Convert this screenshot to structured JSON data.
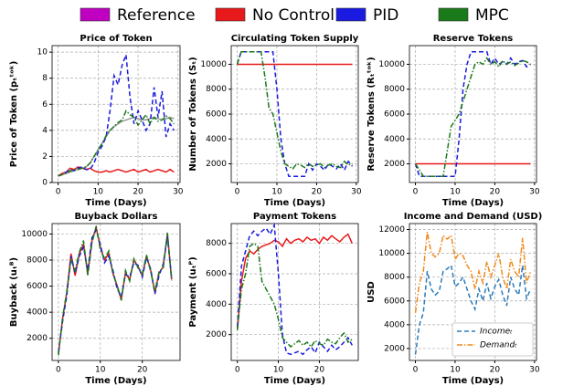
{
  "legend": [
    {
      "name": "Reference",
      "color": "#c000c0"
    },
    {
      "name": "No Control",
      "color": "#e8191a"
    },
    {
      "name": "PID",
      "color": "#1a1ae0"
    },
    {
      "name": "MPC",
      "color": "#1a7a1a"
    }
  ],
  "chart_data": [
    {
      "type": "line",
      "title": "Price of Token",
      "xlabel": "Time (Days)",
      "ylabel": "Price of Token (pₜᵗᵒᵏ)",
      "grid": true,
      "x": [
        0,
        1,
        2,
        3,
        4,
        5,
        6,
        7,
        8,
        9,
        10,
        11,
        12,
        13,
        14,
        15,
        16,
        17,
        18,
        19,
        20,
        21,
        22,
        23,
        24,
        25,
        26,
        27,
        28,
        29
      ],
      "xlim": [
        -1.5,
        30.5
      ],
      "xticks": [
        0,
        10,
        20,
        30
      ],
      "ylim": [
        0,
        10.5
      ],
      "yticks": [
        0,
        2,
        4,
        6,
        8,
        10
      ],
      "series": [
        {
          "name": "Reference",
          "color": "#808080",
          "style": "solid",
          "values": [
            0.5,
            0.6,
            0.7,
            0.8,
            0.9,
            1.0,
            1.1,
            1.2,
            1.5,
            2.0,
            2.5,
            3.0,
            3.5,
            4.0,
            4.3,
            4.5,
            4.7,
            4.8,
            4.9,
            5.0,
            4.9,
            4.8,
            4.8,
            4.9,
            5.0,
            4.9,
            4.8,
            4.9,
            5.0,
            4.9
          ]
        },
        {
          "name": "No Control",
          "color": "#e8191a",
          "style": "solid",
          "values": [
            0.5,
            0.7,
            0.8,
            1.1,
            1.0,
            1.2,
            1.1,
            1.0,
            1.1,
            0.9,
            0.8,
            0.8,
            0.9,
            0.8,
            0.9,
            1.0,
            0.9,
            0.8,
            0.9,
            1.0,
            0.8,
            0.9,
            1.0,
            0.8,
            0.9,
            1.0,
            0.9,
            0.8,
            1.0,
            0.8
          ]
        },
        {
          "name": "PID",
          "color": "#1a1ae0",
          "style": "dashed",
          "values": [
            0.5,
            0.6,
            0.8,
            1.0,
            0.9,
            1.1,
            1.2,
            1.0,
            1.0,
            1.5,
            2.3,
            2.8,
            3.5,
            5.5,
            8.2,
            7.5,
            9.0,
            9.8,
            6.5,
            4.5,
            5.5,
            4.8,
            4.0,
            4.5,
            7.3,
            5.0,
            7.0,
            3.5,
            4.5,
            4.0
          ]
        },
        {
          "name": "MPC",
          "color": "#1a7a1a",
          "style": "dashdot",
          "values": [
            0.5,
            0.6,
            0.7,
            0.9,
            1.0,
            1.0,
            1.1,
            1.2,
            1.5,
            2.0,
            2.5,
            3.0,
            3.6,
            4.0,
            4.3,
            4.6,
            4.8,
            5.5,
            5.2,
            5.0,
            4.4,
            4.8,
            5.2,
            4.5,
            5.0,
            4.7,
            4.8,
            5.1,
            4.9,
            4.5
          ]
        }
      ]
    },
    {
      "type": "line",
      "title": "Circulating Token Supply",
      "xlabel": "Time (Days)",
      "ylabel": "Number of Tokens (Sₜ)",
      "grid": true,
      "x": [
        0,
        1,
        2,
        3,
        4,
        5,
        6,
        7,
        8,
        9,
        10,
        11,
        12,
        13,
        14,
        15,
        16,
        17,
        18,
        19,
        20,
        21,
        22,
        23,
        24,
        25,
        26,
        27,
        28,
        29
      ],
      "xlim": [
        -1.5,
        30.5
      ],
      "xticks": [
        0,
        10,
        20,
        30
      ],
      "ylim": [
        500,
        11500
      ],
      "yticks": [
        2000,
        4000,
        6000,
        8000,
        10000
      ],
      "series": [
        {
          "name": "No Control",
          "color": "#e8191a",
          "style": "solid",
          "values": [
            10000,
            10000,
            10000,
            10000,
            10000,
            10000,
            10000,
            10000,
            10000,
            10000,
            10000,
            10000,
            10000,
            10000,
            10000,
            10000,
            10000,
            10000,
            10000,
            10000,
            10000,
            10000,
            10000,
            10000,
            10000,
            10000,
            10000,
            10000,
            10000,
            10000
          ]
        },
        {
          "name": "PID",
          "color": "#1a1ae0",
          "style": "dashed",
          "values": [
            10000,
            11000,
            11000,
            11000,
            11000,
            11000,
            11000,
            11000,
            11000,
            11000,
            8000,
            4000,
            2000,
            1000,
            1000,
            1000,
            1000,
            1000,
            2000,
            1500,
            2000,
            1800,
            1500,
            2000,
            1800,
            1600,
            2000,
            1500,
            2200,
            1800
          ]
        },
        {
          "name": "MPC",
          "color": "#1a7a1a",
          "style": "dashdot",
          "values": [
            10000,
            11000,
            11000,
            11000,
            11000,
            11000,
            11000,
            9000,
            6500,
            6000,
            4500,
            3000,
            2000,
            1800,
            1600,
            2000,
            1900,
            1700,
            2000,
            1800,
            1900,
            2000,
            1700,
            1900,
            2000,
            1800,
            1700,
            2200,
            1900,
            2000
          ]
        }
      ]
    },
    {
      "type": "line",
      "title": "Reserve Tokens",
      "xlabel": "Time (Days)",
      "ylabel": "Reserve Tokens (Rₜᵗᵒᵏ)",
      "grid": true,
      "x": [
        0,
        1,
        2,
        3,
        4,
        5,
        6,
        7,
        8,
        9,
        10,
        11,
        12,
        13,
        14,
        15,
        16,
        17,
        18,
        19,
        20,
        21,
        22,
        23,
        24,
        25,
        26,
        27,
        28,
        29
      ],
      "xlim": [
        -1.5,
        30.5
      ],
      "xticks": [
        0,
        10,
        20,
        30
      ],
      "ylim": [
        500,
        11500
      ],
      "yticks": [
        2000,
        4000,
        6000,
        8000,
        10000
      ],
      "series": [
        {
          "name": "No Control",
          "color": "#e8191a",
          "style": "solid",
          "values": [
            2000,
            2000,
            2000,
            2000,
            2000,
            2000,
            2000,
            2000,
            2000,
            2000,
            2000,
            2000,
            2000,
            2000,
            2000,
            2000,
            2000,
            2000,
            2000,
            2000,
            2000,
            2000,
            2000,
            2000,
            2000,
            2000,
            2000,
            2000,
            2000,
            2000
          ]
        },
        {
          "name": "PID",
          "color": "#1a1ae0",
          "style": "dashed",
          "values": [
            2000,
            1000,
            1000,
            1000,
            1000,
            1000,
            1000,
            1000,
            1000,
            1000,
            1000,
            4000,
            8000,
            10000,
            11000,
            11000,
            11000,
            11000,
            11000,
            10000,
            10500,
            10000,
            10200,
            10000,
            10500,
            10000,
            10200,
            10300,
            9800,
            10000
          ]
        },
        {
          "name": "MPC",
          "color": "#1a7a1a",
          "style": "dashdot",
          "values": [
            2000,
            1500,
            1000,
            1000,
            1000,
            1000,
            1000,
            1000,
            3000,
            5000,
            5500,
            6000,
            7000,
            8000,
            9000,
            10000,
            10200,
            10000,
            10500,
            10000,
            10200,
            9800,
            10300,
            10000,
            10200,
            9900,
            10100,
            10300,
            10200,
            10000
          ]
        }
      ]
    },
    {
      "type": "line",
      "title": "Buyback Dollars",
      "xlabel": "Time (Days)",
      "ylabel": "Buyback (uₜᴮ)",
      "grid": true,
      "x": [
        0,
        1,
        2,
        3,
        4,
        5,
        6,
        7,
        8,
        9,
        10,
        11,
        12,
        13,
        14,
        15,
        16,
        17,
        18,
        19,
        20,
        21,
        22,
        23,
        24,
        25,
        26,
        27
      ],
      "xlim": [
        -1.5,
        29
      ],
      "xticks": [
        0,
        10,
        20
      ],
      "ylim": [
        300,
        10800
      ],
      "yticks": [
        2000,
        4000,
        6000,
        8000,
        10000
      ],
      "series": [
        {
          "name": "No Control",
          "color": "#e8191a",
          "style": "solid",
          "values": [
            800,
            3500,
            5500,
            8500,
            6800,
            8500,
            9200,
            7000,
            9500,
            10500,
            9000,
            8000,
            8500,
            7000,
            6000,
            5000,
            7000,
            6500,
            8000,
            7500,
            6800,
            8300,
            7200,
            5500,
            7000,
            7500,
            10000,
            6500
          ]
        },
        {
          "name": "PID",
          "color": "#1a1ae0",
          "style": "dashed",
          "values": [
            900,
            3300,
            5300,
            8300,
            7000,
            8300,
            9000,
            7200,
            9700,
            10300,
            9200,
            7800,
            8300,
            7200,
            5800,
            5200,
            6900,
            6700,
            7800,
            7600,
            6700,
            8200,
            7300,
            5400,
            6800,
            7700,
            9800,
            6600
          ]
        },
        {
          "name": "MPC",
          "color": "#1a7a1a",
          "style": "dashdot",
          "values": [
            700,
            3600,
            5600,
            8000,
            7200,
            8600,
            9500,
            6800,
            9300,
            10600,
            8800,
            8100,
            8700,
            6900,
            6100,
            4900,
            7200,
            6400,
            8100,
            7400,
            6900,
            8400,
            7100,
            5600,
            7100,
            7400,
            10100,
            6400
          ]
        }
      ]
    },
    {
      "type": "line",
      "title": "Payment Tokens",
      "xlabel": "Time (Days)",
      "ylabel": "Payment (uₜᴾ)",
      "grid": true,
      "x": [
        0,
        1,
        2,
        3,
        4,
        5,
        6,
        7,
        8,
        9,
        10,
        11,
        12,
        13,
        14,
        15,
        16,
        17,
        18,
        19,
        20,
        21,
        22,
        23,
        24,
        25,
        26,
        27,
        28
      ],
      "xlim": [
        -1.5,
        29.5
      ],
      "xticks": [
        0,
        10,
        20
      ],
      "ylim": [
        300,
        9300
      ],
      "yticks": [
        2000,
        4000,
        6000,
        8000
      ],
      "series": [
        {
          "name": "No Control",
          "color": "#e8191a",
          "style": "solid",
          "values": [
            2300,
            5500,
            7000,
            7500,
            7300,
            7600,
            7800,
            7900,
            8000,
            8200,
            8100,
            7800,
            8300,
            8000,
            8200,
            8300,
            8100,
            8400,
            8200,
            8300,
            8000,
            8400,
            8200,
            8500,
            8300,
            8100,
            8400,
            8600,
            8000
          ]
        },
        {
          "name": "PID",
          "color": "#1a1ae0",
          "style": "dashed",
          "values": [
            2500,
            6500,
            7500,
            8500,
            8800,
            8500,
            8800,
            9000,
            8600,
            9200,
            6000,
            2000,
            800,
            700,
            800,
            900,
            700,
            1000,
            1200,
            800,
            1500,
            1200,
            900,
            1300,
            1000,
            1200,
            1500,
            1800,
            1300
          ]
        },
        {
          "name": "MPC",
          "color": "#1a7a1a",
          "style": "dashdot",
          "values": [
            2300,
            5000,
            6000,
            7800,
            8000,
            7800,
            5500,
            5000,
            4500,
            4000,
            3000,
            1800,
            1500,
            1200,
            1400,
            1600,
            1300,
            1500,
            1200,
            1600,
            1400,
            1300,
            1700,
            1500,
            1400,
            1800,
            2100,
            1500,
            1700
          ]
        }
      ]
    },
    {
      "type": "line",
      "title": "Income and Demand (USD)",
      "xlabel": "Time (Days)",
      "ylabel": "USD",
      "grid": true,
      "legend": "lower right",
      "x": [
        0,
        1,
        2,
        3,
        4,
        5,
        6,
        7,
        8,
        9,
        10,
        11,
        12,
        13,
        14,
        15,
        16,
        17,
        18,
        19,
        20,
        21,
        22,
        23,
        24,
        25,
        26,
        27,
        28,
        29
      ],
      "xlim": [
        -1.5,
        30.5
      ],
      "xticks": [
        0,
        10,
        20,
        30
      ],
      "ylim": [
        1000,
        12500
      ],
      "yticks": [
        2000,
        4000,
        6000,
        8000,
        10000,
        12000
      ],
      "series": [
        {
          "name": "Incomeₜ",
          "color": "#2b7bba",
          "style": "dashed",
          "values": [
            1500,
            4000,
            5000,
            8500,
            7000,
            6500,
            6800,
            8500,
            8700,
            9000,
            7200,
            7500,
            8000,
            7000,
            6000,
            5300,
            7000,
            6000,
            7500,
            6200,
            7200,
            7800,
            6500,
            5600,
            8000,
            7000,
            6500,
            9000,
            6200,
            7000
          ]
        },
        {
          "name": "Demandₜ",
          "color": "#f08a1c",
          "style": "dashdot",
          "values": [
            5000,
            7500,
            8500,
            11800,
            10000,
            9700,
            10000,
            11500,
            11200,
            11500,
            9500,
            10000,
            9800,
            9000,
            8500,
            7000,
            8500,
            7500,
            9300,
            8000,
            9000,
            10000,
            8000,
            7000,
            9500,
            8500,
            8000,
            11300,
            7500,
            8500
          ]
        }
      ]
    }
  ]
}
